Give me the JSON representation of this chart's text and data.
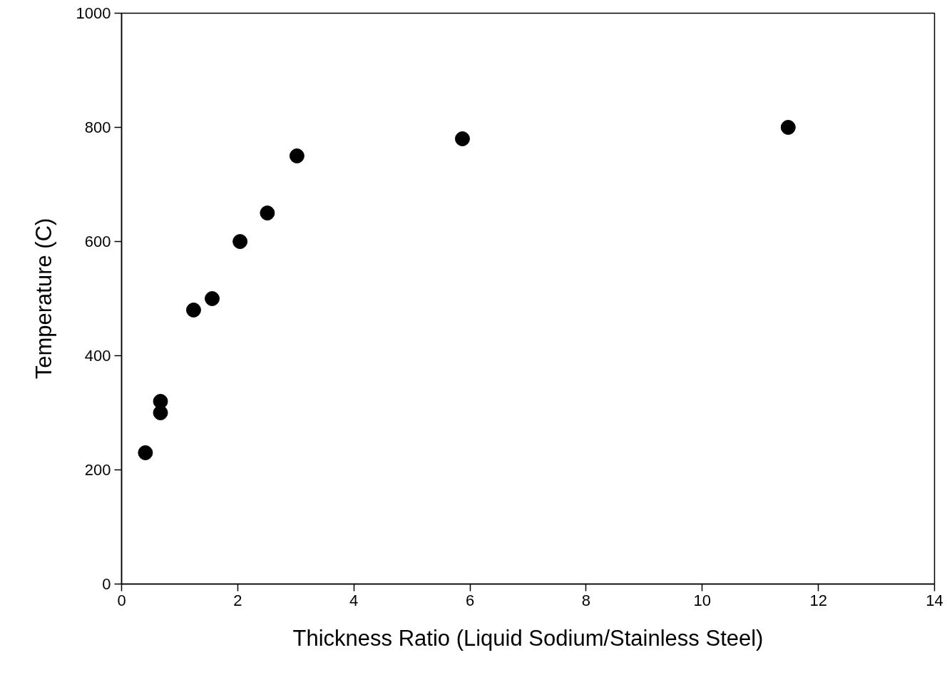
{
  "chart_data": {
    "type": "scatter",
    "xlabel": "Thickness Ratio (Liquid Sodium/Stainless Steel)",
    "ylabel": "Temperature (C)",
    "x": [
      0.41,
      0.67,
      0.67,
      1.24,
      1.56,
      2.04,
      2.51,
      3.02,
      5.87,
      11.48
    ],
    "series": [
      {
        "color": "#000000",
        "values": [
          230,
          320,
          300,
          480,
          500,
          600,
          650,
          750,
          780,
          800
        ]
      }
    ],
    "xlim": [
      0,
      14
    ],
    "xticks": [
      0,
      2,
      4,
      6,
      8,
      10,
      12,
      14
    ],
    "ylim": [
      0,
      1000
    ],
    "yticks": [
      0,
      200,
      400,
      600,
      800,
      1000
    ],
    "grid": false,
    "marker": "circle"
  }
}
